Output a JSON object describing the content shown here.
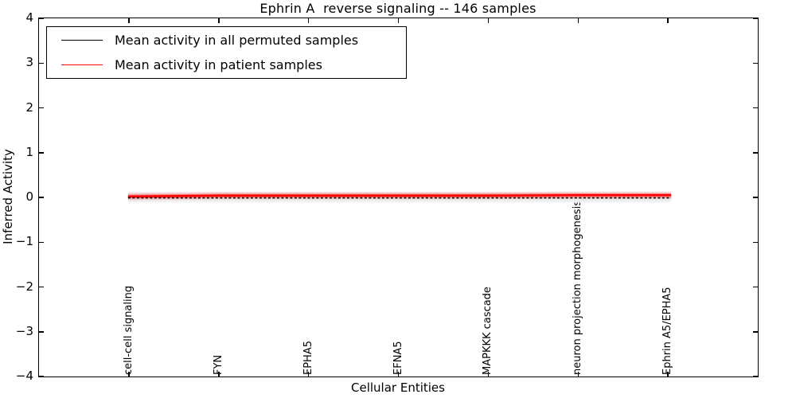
{
  "figure": {
    "background": "#ffffff",
    "frame_color": "#000000"
  },
  "legend": {
    "position": "upper left",
    "items": [
      {
        "label": "Mean activity in all permuted samples",
        "color": "#000000",
        "style": "solid"
      },
      {
        "label": "Mean activity in patient samples",
        "color": "#ff0000",
        "style": "solid"
      }
    ]
  },
  "chart_data": {
    "type": "line",
    "title": "Ephrin A  reverse signaling -- 146 samples",
    "xlabel": "Cellular Entities",
    "ylabel": "Inferred Activity",
    "ylim": [
      -4,
      4
    ],
    "yticks": [
      4,
      3,
      2,
      1,
      0,
      -1,
      -2,
      -3,
      -4
    ],
    "ytick_labels": [
      "4",
      "3",
      "2",
      "1",
      "0",
      "−1",
      "−2",
      "−3",
      "−4"
    ],
    "categories": [
      "cell-cell signaling",
      "FYN",
      "EPHA5",
      "EFNA5",
      "MAPKKK cascade",
      "neuron projection morphogenesis",
      "Ephrin A5/EPHA5"
    ],
    "series": [
      {
        "name": "Mean activity in all permuted samples",
        "color": "#000000",
        "line_style": "dashed",
        "values": [
          -0.01,
          -0.01,
          -0.01,
          -0.01,
          -0.01,
          -0.01,
          -0.01
        ]
      },
      {
        "name": "Mean activity in patient samples",
        "color": "#ff0000",
        "line_style": "solid",
        "values": [
          0.02,
          0.04,
          0.04,
          0.04,
          0.04,
          0.05,
          0.05
        ]
      }
    ],
    "band": {
      "description": "spread of permuted sample activities around 0",
      "color": "#e8e8e8",
      "low": -0.12,
      "high": 0.12
    },
    "grid": false,
    "legend_position": "upper left",
    "tick_direction": "in"
  }
}
